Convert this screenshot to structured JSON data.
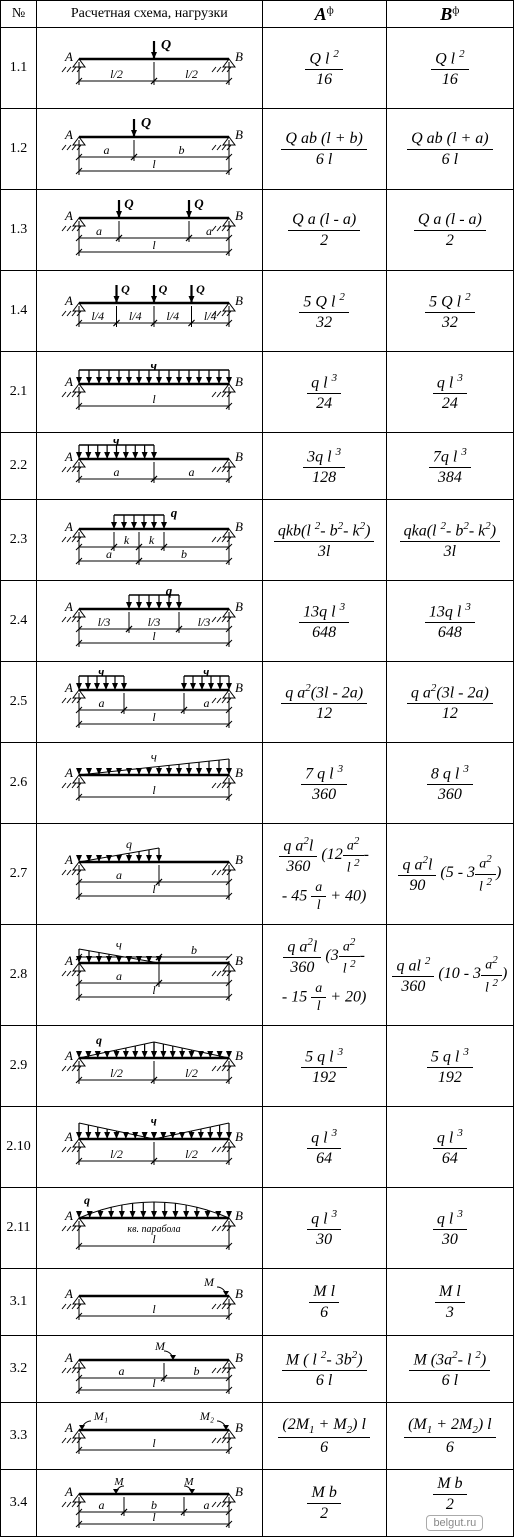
{
  "headers": {
    "num": "№",
    "scheme": "Расчетная схема, нагрузки",
    "colA_var": "A",
    "colA_sup": "ф",
    "colB_var": "B",
    "colB_sup": "ф"
  },
  "rows": [
    {
      "num": "1.1",
      "A_num": "Q l ²",
      "A_den": "16",
      "B_num": "Q l ²",
      "B_den": "16",
      "height": "row",
      "scheme": "s11"
    },
    {
      "num": "1.2",
      "A_num": "Q ab (l + b)",
      "A_den": "6 l",
      "B_num": "Q ab (l + a)",
      "B_den": "6 l",
      "height": "row",
      "scheme": "s12"
    },
    {
      "num": "1.3",
      "A_num": "Q a (l - a)",
      "A_den": "2",
      "B_num": "Q a (l - a)",
      "B_den": "2",
      "height": "row",
      "scheme": "s13"
    },
    {
      "num": "1.4",
      "A_num": "5 Q l ²",
      "A_den": "32",
      "B_num": "5 Q l ²",
      "B_den": "32",
      "height": "row",
      "scheme": "s14"
    },
    {
      "num": "2.1",
      "A_num": "q l ³",
      "A_den": "24",
      "B_num": "q l ³",
      "B_den": "24",
      "height": "row",
      "scheme": "s21"
    },
    {
      "num": "2.2",
      "A_num": "3q l ³",
      "A_den": "128",
      "B_num": "7q l ³",
      "B_den": "384",
      "height": "row short",
      "scheme": "s22"
    },
    {
      "num": "2.3",
      "A_num": "qkb(l ²- b²- k²)",
      "A_den": "3l",
      "B_num": "qka(l ²- b²- k²)",
      "B_den": "3l",
      "height": "row",
      "scheme": "s23"
    },
    {
      "num": "2.4",
      "A_num": "13q l ³",
      "A_den": "648",
      "B_num": "13q l ³",
      "B_den": "648",
      "height": "row",
      "scheme": "s24"
    },
    {
      "num": "2.5",
      "A_num": "q a²(3l - 2a)",
      "A_den": "12",
      "B_num": "q a²(3l - 2a)",
      "B_den": "12",
      "height": "row",
      "scheme": "s25"
    },
    {
      "num": "2.6",
      "A_num": "7 q l ³",
      "A_den": "360",
      "B_num": "8 q l ³",
      "B_den": "360",
      "height": "row",
      "scheme": "s26"
    },
    {
      "num": "2.7",
      "A_custom": true,
      "B_custom": true,
      "height": "row tall",
      "scheme": "s27"
    },
    {
      "num": "2.8",
      "A_custom": true,
      "B_custom": true,
      "height": "row tall",
      "scheme": "s28"
    },
    {
      "num": "2.9",
      "A_num": "5 q l ³",
      "A_den": "192",
      "B_num": "5 q l ³",
      "B_den": "192",
      "height": "row",
      "scheme": "s29"
    },
    {
      "num": "2.10",
      "A_num": "q l ³",
      "A_den": "64",
      "B_num": "q l ³",
      "B_den": "64",
      "height": "row",
      "scheme": "s210"
    },
    {
      "num": "2.11",
      "A_num": "q l ³",
      "A_den": "30",
      "B_num": "q l ³",
      "B_den": "30",
      "height": "row",
      "scheme": "s211"
    },
    {
      "num": "3.1",
      "A_num": "M l",
      "A_den": "6",
      "B_num": "M l",
      "B_den": "3",
      "height": "row short",
      "scheme": "s31"
    },
    {
      "num": "3.2",
      "A_num": "M ( l ²- 3b²)",
      "A_den": "6 l",
      "B_num": "M (3a²- l ²)",
      "B_den": "6 l",
      "height": "row short",
      "scheme": "s32"
    },
    {
      "num": "3.3",
      "A_num": "(2M₁ + M₂) l",
      "A_den": "6",
      "B_num": "(M₁ + 2M₂) l",
      "B_den": "6",
      "height": "row short",
      "scheme": "s33"
    },
    {
      "num": "3.4",
      "A_num": "M b",
      "A_den": "2",
      "B_num": "M b",
      "B_den": "2",
      "height": "row short",
      "scheme": "s34"
    }
  ],
  "custom": {
    "r27_A_pre": "q a²l",
    "r27_A_pre_den": "360",
    "r27_A_rest1": "(12",
    "r27_A_sm_num": "a²",
    "r27_A_sm_den": "l ²",
    "r27_A_rest2": "-",
    "r27_A_line2": "- 45",
    "r27_A_sm2_num": "a",
    "r27_A_sm2_den": "l",
    "r27_A_rest3": "+ 40)",
    "r27_B_pre": "q a²l",
    "r27_B_pre_den": "90",
    "r27_B_rest1": "(5 - 3",
    "r27_B_sm_num": "a²",
    "r27_B_sm_den": "l ²",
    "r27_B_rest2": ")",
    "r28_A_pre": "q a²l",
    "r28_A_pre_den": "360",
    "r28_A_rest1": "(3",
    "r28_A_sm_num": "a²",
    "r28_A_sm_den": "l ²",
    "r28_A_rest2": "-",
    "r28_A_line2": "- 15",
    "r28_A_sm2_num": "a",
    "r28_A_sm2_den": "l",
    "r28_A_rest3": "+ 20)",
    "r28_B_pre": "q al ²",
    "r28_B_pre_den": "360",
    "r28_B_rest1": "(10 - 3",
    "r28_B_sm_num": "a²",
    "r28_B_sm_den": "l ²",
    "r28_B_rest2": ")"
  },
  "scheme_labels": {
    "A": "A",
    "B": "B",
    "Q": "Q",
    "q": "q",
    "M": "M",
    "M1": "M₁",
    "M2": "M₂",
    "l": "l",
    "l2": "l/2",
    "l3": "l/3",
    "l4": "l/4",
    "a": "a",
    "b": "b",
    "k": "k",
    "parabola": "кв. парабола"
  },
  "watermark": "belgut.ru",
  "colors": {
    "stroke": "#000000",
    "fill": "#000000",
    "dim": "#000000"
  }
}
